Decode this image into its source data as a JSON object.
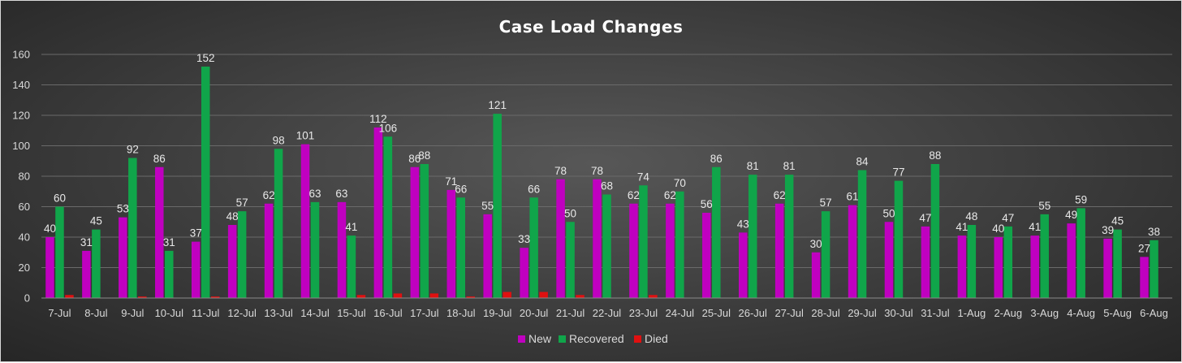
{
  "chart_data": {
    "type": "bar",
    "title": "Case Load Changes",
    "xlabel": "",
    "ylabel": "",
    "ylim": [
      0,
      160
    ],
    "yticks": [
      0,
      20,
      40,
      60,
      80,
      100,
      120,
      140,
      160
    ],
    "grid": true,
    "legend_position": "bottom",
    "categories": [
      "7-Jul",
      "8-Jul",
      "9-Jul",
      "10-Jul",
      "11-Jul",
      "12-Jul",
      "13-Jul",
      "14-Jul",
      "15-Jul",
      "16-Jul",
      "17-Jul",
      "18-Jul",
      "19-Jul",
      "20-Jul",
      "21-Jul",
      "22-Jul",
      "23-Jul",
      "24-Jul",
      "25-Jul",
      "26-Jul",
      "27-Jul",
      "28-Jul",
      "29-Jul",
      "30-Jul",
      "31-Jul",
      "1-Aug",
      "2-Aug",
      "3-Aug",
      "4-Aug",
      "5-Aug",
      "6-Aug"
    ],
    "series": [
      {
        "name": "New",
        "color": "#c000c0",
        "show_labels": true,
        "values": [
          40,
          31,
          53,
          86,
          37,
          48,
          62,
          101,
          63,
          112,
          86,
          71,
          55,
          33,
          78,
          78,
          62,
          62,
          56,
          43,
          62,
          30,
          61,
          50,
          47,
          41,
          40,
          41,
          49,
          39,
          27
        ]
      },
      {
        "name": "Recovered",
        "color": "#10a54a",
        "show_labels": true,
        "values": [
          60,
          45,
          92,
          31,
          152,
          57,
          98,
          63,
          41,
          106,
          88,
          66,
          121,
          66,
          50,
          68,
          74,
          70,
          86,
          81,
          81,
          57,
          84,
          77,
          88,
          48,
          47,
          55,
          59,
          45,
          38
        ]
      },
      {
        "name": "Died",
        "color": "#e01010",
        "show_labels": false,
        "values": [
          2,
          0,
          1,
          0,
          1,
          0,
          0,
          0,
          2,
          3,
          3,
          1,
          4,
          4,
          2,
          0,
          2,
          0,
          0,
          0,
          0,
          0,
          0,
          0,
          0,
          0,
          0,
          0,
          0,
          0,
          0
        ]
      }
    ]
  }
}
